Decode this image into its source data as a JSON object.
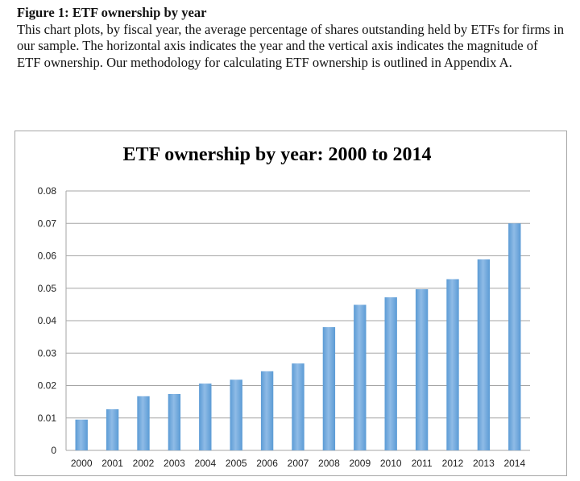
{
  "caption": {
    "title": "Figure 1:  ETF ownership by year",
    "body": "This chart plots, by fiscal year, the average percentage of shares outstanding held by ETFs for firms in our sample. The horizontal axis indicates the year and the vertical axis indicates the magnitude of ETF ownership. Our methodology for calculating ETF ownership is outlined in Appendix A."
  },
  "chart_data": {
    "type": "bar",
    "title": "ETF ownership by year: 2000 to 2014",
    "xlabel": "",
    "ylabel": "",
    "categories": [
      "2000",
      "2001",
      "2002",
      "2003",
      "2004",
      "2005",
      "2006",
      "2007",
      "2008",
      "2009",
      "2010",
      "2011",
      "2012",
      "2013",
      "2014"
    ],
    "values": [
      0.0095,
      0.0127,
      0.0167,
      0.0174,
      0.0206,
      0.0218,
      0.0244,
      0.0268,
      0.038,
      0.0449,
      0.0472,
      0.0497,
      0.0528,
      0.0589,
      0.07
    ],
    "ylim": [
      0,
      0.08
    ],
    "yticks": [
      "0",
      "0.01",
      "0.02",
      "0.03",
      "0.04",
      "0.05",
      "0.06",
      "0.07",
      "0.08"
    ],
    "ytick_values": [
      0,
      0.01,
      0.02,
      0.03,
      0.04,
      0.05,
      0.06,
      0.07,
      0.08
    ],
    "grid": true,
    "legend": "none",
    "bar_color": "#5b9bd5",
    "bar_color_light": "#8fbbe6",
    "grid_color": "#a6a6a6"
  }
}
